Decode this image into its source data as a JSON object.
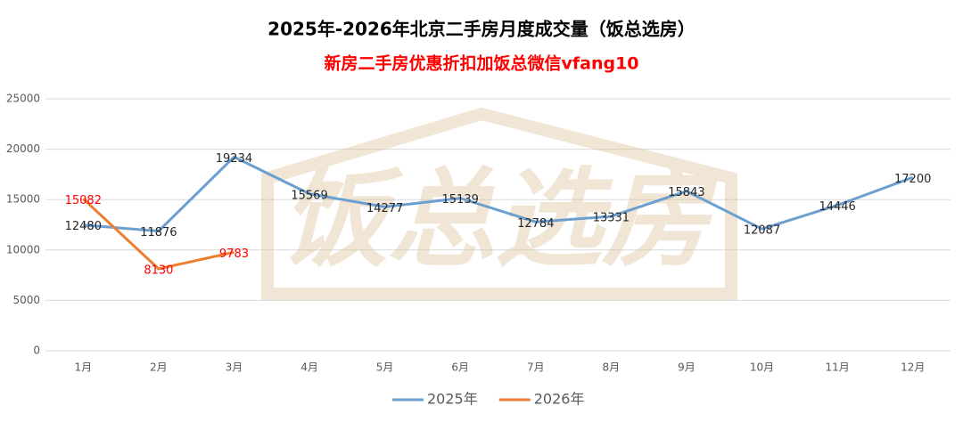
{
  "chart_data": {
    "type": "line",
    "title": "2025年-2026年北京二手房月度成交量（饭总选房）",
    "subtitle": "新房二手房优惠折扣加饭总微信vfang10",
    "watermark": "饭总选房",
    "categories": [
      "1月",
      "2月",
      "3月",
      "4月",
      "5月",
      "6月",
      "7月",
      "8月",
      "9月",
      "10月",
      "11月",
      "12月"
    ],
    "series": [
      {
        "name": "2025年",
        "color": "#6a9fd0",
        "label_color": "#262626",
        "values": [
          12480,
          11876,
          19234,
          15569,
          14277,
          15139,
          12784,
          13331,
          15843,
          12087,
          14446,
          17200
        ]
      },
      {
        "name": "2026年",
        "color": "#ed7d31",
        "label_color": "#ff0000",
        "values": [
          15082,
          8130,
          9783,
          null,
          null,
          null,
          null,
          null,
          null,
          null,
          null,
          null
        ]
      }
    ],
    "ylim": [
      0,
      25000
    ],
    "yticks": [
      0,
      5000,
      10000,
      15000,
      20000,
      25000
    ],
    "grid": true,
    "legend": "bottom"
  }
}
